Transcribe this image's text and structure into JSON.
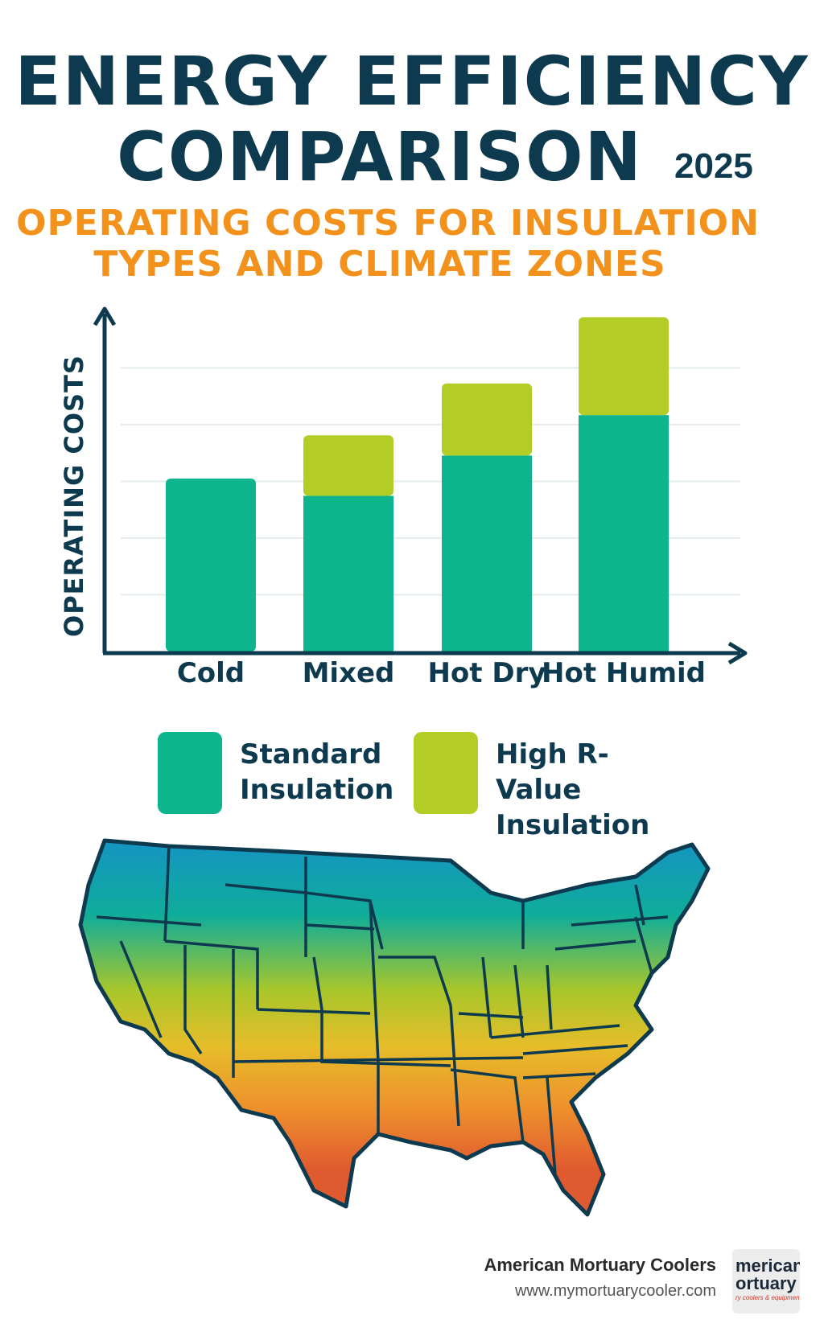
{
  "header": {
    "title_line1": "ENERGY EFFICIENCY",
    "title_line2": "COMPARISON",
    "year": "2025",
    "subtitle_line1": "OPERATING COSTS FOR INSULATION",
    "subtitle_line2": "TYPES AND CLIMATE ZONES"
  },
  "chart_data": {
    "type": "bar",
    "stacked": true,
    "categories": [
      "Cold",
      "Mixed",
      "Hot Dry",
      "Hot Humid"
    ],
    "ylabel": "OPERATING COSTS",
    "xlabel": "",
    "ylim": [
      0,
      6
    ],
    "grid": true,
    "series": [
      {
        "name": "Standard Insulation",
        "color": "#0db48c",
        "values": [
          3.0,
          2.7,
          3.4,
          4.1
        ]
      },
      {
        "name": "High R-Value Insulation",
        "color": "#b3cc26",
        "values": [
          0,
          1.05,
          1.25,
          1.7
        ]
      }
    ],
    "legend_position": "bottom"
  },
  "legend": {
    "standard": {
      "line1": "Standard",
      "line2": "Insulation",
      "color": "#0db48c"
    },
    "high_r": {
      "line1": "High R-Value",
      "line2": "Insulation",
      "color": "#b3cc26"
    }
  },
  "footer": {
    "company": "American Mortuary Coolers",
    "url": "www.mymortuarycooler.com",
    "logo_line1": "merican",
    "logo_line2": "ortuary",
    "logo_tag": "ry coolers & equipment"
  }
}
